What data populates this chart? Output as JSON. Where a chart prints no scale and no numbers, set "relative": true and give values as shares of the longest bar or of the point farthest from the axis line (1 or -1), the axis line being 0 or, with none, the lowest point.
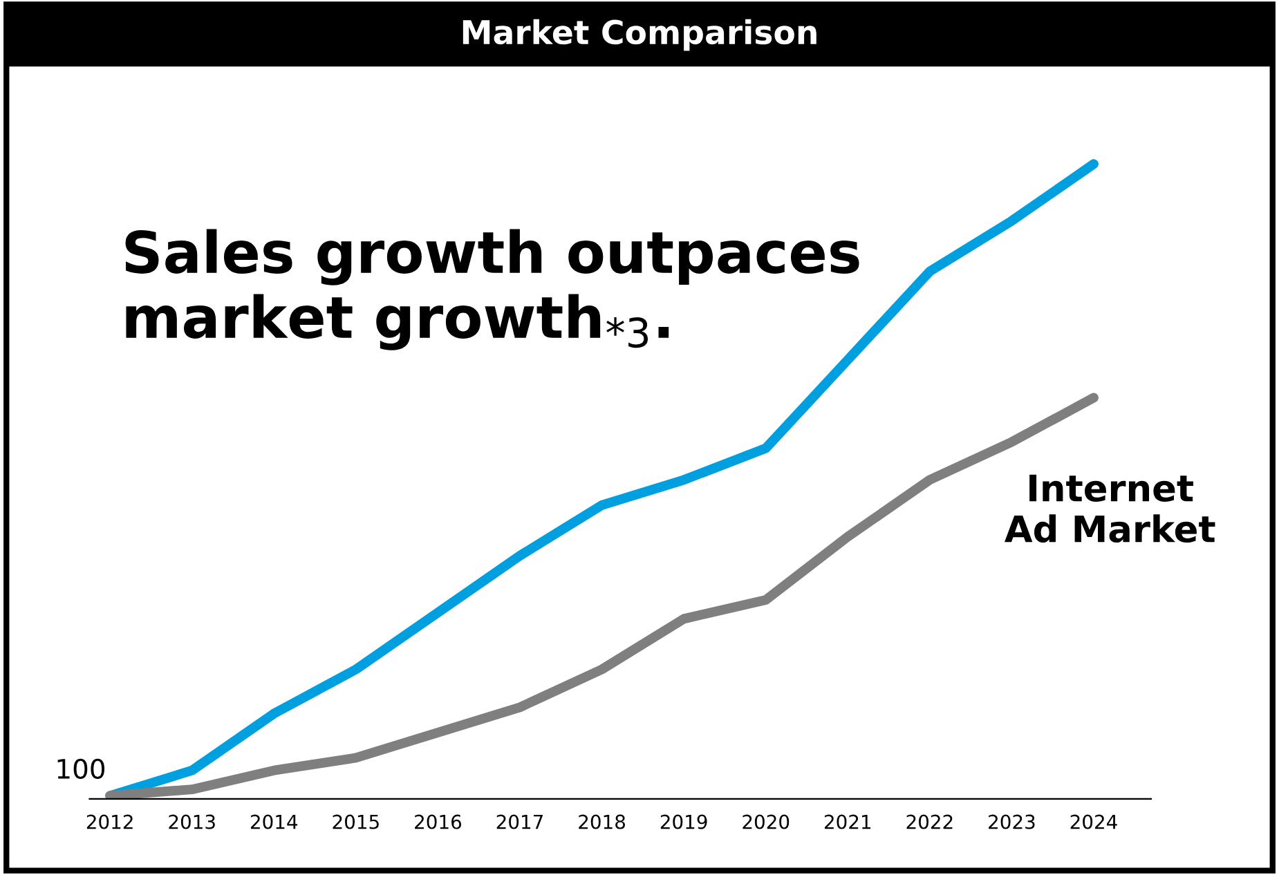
{
  "chart_data": {
    "type": "line",
    "title": "Market Comparison",
    "relative": true,
    "legend": false,
    "grid": false,
    "categories": [
      "2012",
      "2013",
      "2014",
      "2015",
      "2016",
      "2017",
      "2018",
      "2019",
      "2020",
      "2021",
      "2022",
      "2023",
      "2024"
    ],
    "series": [
      {
        "color": "#00a0e0",
        "values": [
          0,
          0.04,
          0.13,
          0.2,
          0.29,
          0.38,
          0.46,
          0.5,
          0.55,
          0.69,
          0.83,
          0.91,
          1.0
        ]
      },
      {
        "name": "Internet\nAd Market",
        "color": "#7f7f7f",
        "values": [
          0,
          0.01,
          0.04,
          0.06,
          0.1,
          0.14,
          0.2,
          0.28,
          0.31,
          0.41,
          0.5,
          0.56,
          0.63
        ]
      }
    ],
    "annotations": [
      "Sales growth outpaces\nmarket growth$_{*3}$.",
      {
        "text": "100",
        "x": "2012",
        "y": 0
      }
    ]
  }
}
